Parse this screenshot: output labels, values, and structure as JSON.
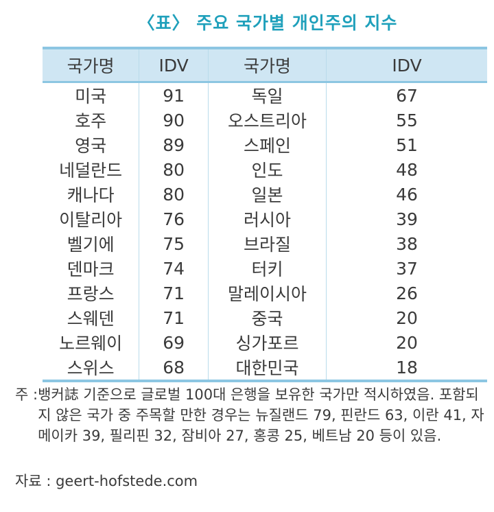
{
  "title": "〈표〉 주요 국가별 개인주의 지수",
  "table": {
    "headers": [
      "국가명",
      "IDV",
      "국가명",
      "IDV"
    ],
    "rows": [
      [
        "미국",
        "91",
        "독일",
        "67"
      ],
      [
        "호주",
        "90",
        "오스트리아",
        "55"
      ],
      [
        "영국",
        "89",
        "스페인",
        "51"
      ],
      [
        "네덜란드",
        "80",
        "인도",
        "48"
      ],
      [
        "캐나다",
        "80",
        "일본",
        "46"
      ],
      [
        "이탈리아",
        "76",
        "러시아",
        "39"
      ],
      [
        "벨기에",
        "75",
        "브라질",
        "38"
      ],
      [
        "덴마크",
        "74",
        "터키",
        "37"
      ],
      [
        "프랑스",
        "71",
        "말레이시아",
        "26"
      ],
      [
        "스웨덴",
        "71",
        "중국",
        "20"
      ],
      [
        "노르웨이",
        "69",
        "싱가포르",
        "20"
      ],
      [
        "스위스",
        "68",
        "대한민국",
        "18"
      ]
    ]
  },
  "note": {
    "label": "주 : ",
    "text": "뱅커誌 기준으로 글로벌 100대 은행을 보유한 국가만 적시하였음. 포함되지 않은 국가 중 주목할 만한 경우는 뉴질랜드 79, 핀란드 63, 이란 41, 자메이카 39, 필리핀 32, 잠비아 27, 홍콩 25, 베트남 20 등이 있음."
  },
  "source": {
    "label": "자료 : ",
    "text": "geert-hofstede.com"
  },
  "colors": {
    "title": "#1fa0bb",
    "header_bg": "#cfe6f3",
    "border": "#8cc6e2"
  }
}
